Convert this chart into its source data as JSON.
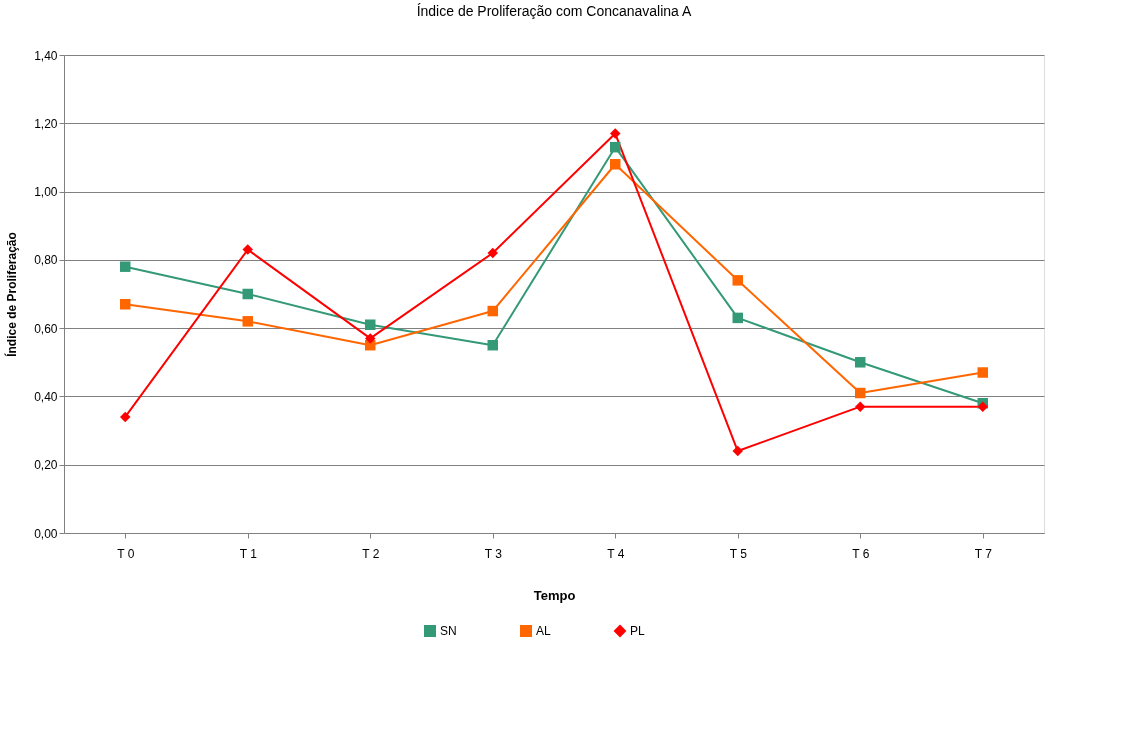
{
  "chart_data": {
    "type": "line",
    "title": "Índice de Proliferação com Concanavalina A",
    "xlabel": "Tempo",
    "ylabel": "Índice de Proliferação",
    "categories": [
      "T 0",
      "T 1",
      "T 2",
      "T 3",
      "T 4",
      "T 5",
      "T 6",
      "T 7"
    ],
    "series": [
      {
        "name": "SN",
        "color": "#339977",
        "marker": "square",
        "values": [
          0.78,
          0.7,
          0.61,
          0.55,
          1.13,
          0.63,
          0.5,
          0.38
        ]
      },
      {
        "name": "AL",
        "color": "#ff6600",
        "marker": "square",
        "values": [
          0.67,
          0.62,
          0.55,
          0.65,
          1.08,
          0.74,
          0.41,
          0.47
        ]
      },
      {
        "name": "PL",
        "color": "#ff0000",
        "marker": "diamond",
        "values": [
          0.34,
          0.83,
          0.57,
          0.82,
          1.17,
          0.24,
          0.37,
          0.37
        ]
      }
    ],
    "ylim": [
      0,
      1.4
    ],
    "yticks": [
      {
        "value": 0,
        "label": "0,00"
      },
      {
        "value": 0.2,
        "label": "0,20"
      },
      {
        "value": 0.4,
        "label": "0,40"
      },
      {
        "value": 0.6,
        "label": "0,60"
      },
      {
        "value": 0.8,
        "label": "0,80"
      },
      {
        "value": 1.0,
        "label": "1,00"
      },
      {
        "value": 1.2,
        "label": "1,20"
      },
      {
        "value": 1.4,
        "label": "1,40"
      }
    ],
    "grid": "y",
    "legend": "bottom",
    "line_style": "solid"
  }
}
